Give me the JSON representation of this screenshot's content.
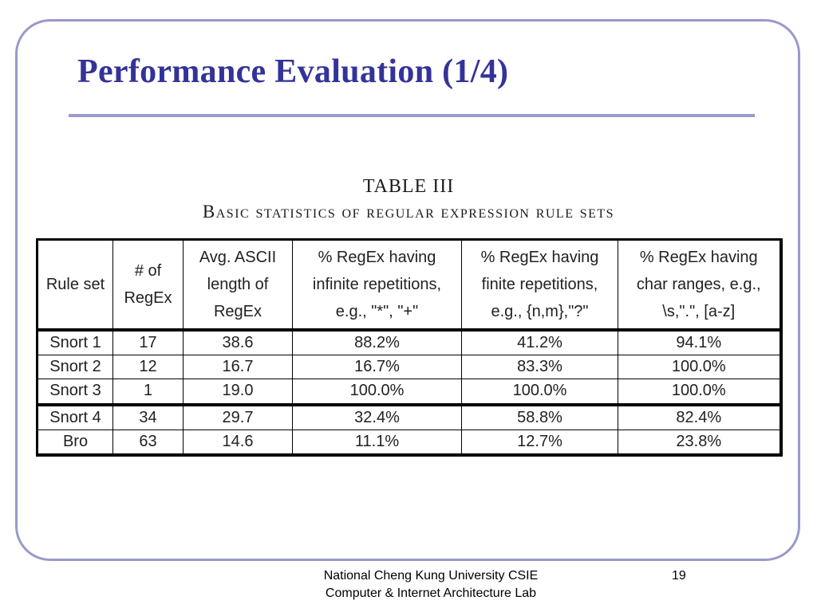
{
  "slide": {
    "title": "Performance Evaluation (1/4)"
  },
  "table": {
    "number": "TABLE III",
    "caption": "Basic statistics of regular expression rule sets",
    "headers": [
      [
        "Rule set"
      ],
      [
        "# of",
        "RegEx"
      ],
      [
        "Avg. ASCII",
        "length of",
        "RegEx"
      ],
      [
        "% RegEx having",
        "infinite repetitions,",
        "e.g., \"*\", \"+\""
      ],
      [
        "% RegEx having",
        "finite repetitions,",
        "e.g., {n,m},\"?\""
      ],
      [
        "% RegEx having",
        "char ranges, e.g.,",
        "\\s,\".\", [a-z]"
      ]
    ],
    "rows": [
      [
        "Snort 1",
        "17",
        "38.6",
        "88.2%",
        "41.2%",
        "94.1%"
      ],
      [
        "Snort 2",
        "12",
        "16.7",
        "16.7%",
        "83.3%",
        "100.0%"
      ],
      [
        "Snort 3",
        "1",
        "19.0",
        "100.0%",
        "100.0%",
        "100.0%"
      ],
      [
        "Snort 4",
        "34",
        "29.7",
        "32.4%",
        "58.8%",
        "82.4%"
      ],
      [
        "Bro",
        "63",
        "14.6",
        "11.1%",
        "12.7%",
        "23.8%"
      ]
    ]
  },
  "footer": {
    "line1": "National Cheng Kung University CSIE",
    "line2": "Computer & Internet Architecture Lab",
    "page": "19"
  }
}
